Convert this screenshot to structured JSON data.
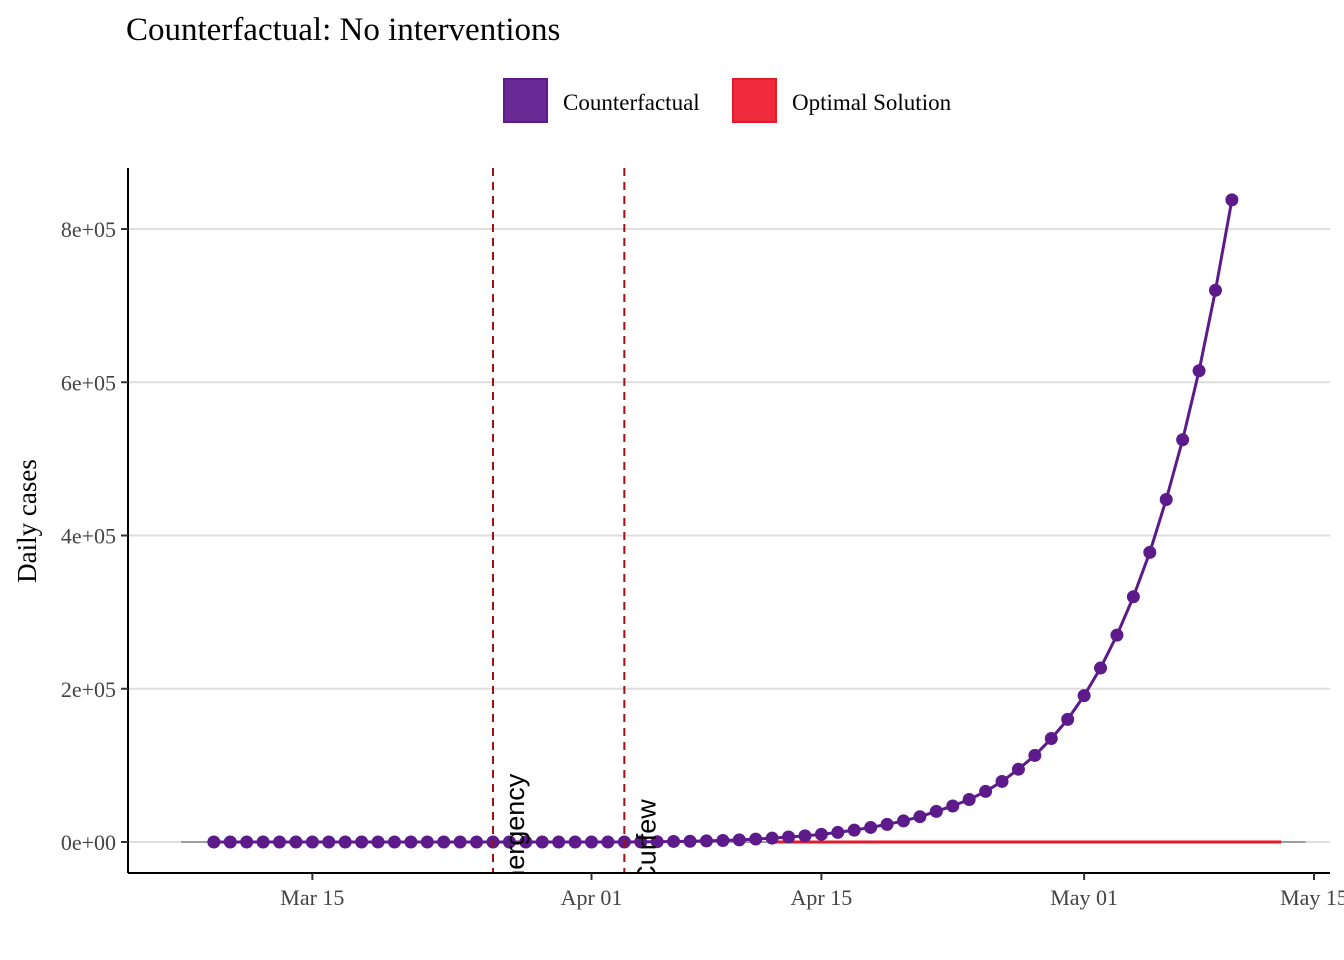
{
  "chart_data": {
    "type": "line",
    "title": "Counterfactual: No interventions",
    "xlabel": "",
    "ylabel": "Daily cases",
    "x_range": [
      "2020-03-07",
      "2020-05-15"
    ],
    "ylim": [
      -40000,
      880000
    ],
    "x_ticks": [
      {
        "date": "2020-03-15",
        "label": "Mar 15"
      },
      {
        "date": "2020-04-01",
        "label": "Apr 01"
      },
      {
        "date": "2020-04-15",
        "label": "Apr 15"
      },
      {
        "date": "2020-05-01",
        "label": "May 01"
      },
      {
        "date": "2020-05-15",
        "label": "May 15"
      }
    ],
    "y_ticks": [
      {
        "value": 0,
        "label": "0e+00"
      },
      {
        "value": 200000,
        "label": "2e+05"
      },
      {
        "value": 400000,
        "label": "4e+05"
      },
      {
        "value": 600000,
        "label": "6e+05"
      },
      {
        "value": 800000,
        "label": "8e+05"
      }
    ],
    "grid": "horizontal-major",
    "legend": {
      "position": "top",
      "entries": [
        {
          "name": "Counterfactual",
          "color": "#5c1a8a",
          "fill": "#6a2a95"
        },
        {
          "name": "Optimal Solution",
          "color": "#e31a2c",
          "fill": "#ef2b3c"
        }
      ]
    },
    "interventions": [
      {
        "date": "2020-03-26",
        "label": "Emergency",
        "color": "#a01010"
      },
      {
        "date": "2020-04-03",
        "label": "Curfew",
        "color": "#a01010"
      }
    ],
    "baseline": {
      "from": "2020-03-07",
      "to": "2020-05-14",
      "value": 0,
      "color": "#9e9e9e"
    },
    "series": [
      {
        "name": "Counterfactual",
        "color": "#5c1a8a",
        "markers": true,
        "start_date": "2020-03-09",
        "values": [
          0,
          0,
          0,
          0,
          0,
          0,
          0,
          0,
          0,
          0,
          0,
          0,
          0,
          0,
          0,
          0,
          0,
          0,
          0,
          0,
          0,
          0,
          0,
          0,
          0,
          0,
          200,
          400,
          700,
          1000,
          1400,
          2000,
          2800,
          3800,
          5000,
          6500,
          8000,
          10000,
          12500,
          15500,
          19000,
          23000,
          27500,
          33000,
          40000,
          47000,
          55500,
          66000,
          79000,
          95000,
          113000,
          135000,
          160000,
          191000,
          227000,
          270000,
          320000,
          378000,
          447000,
          525000,
          615000,
          720000,
          838000
        ]
      },
      {
        "name": "Optimal Solution",
        "color": "#e31a2c",
        "markers": false,
        "start_date": "2020-04-12",
        "end_date": "2020-05-13",
        "value": 0
      }
    ]
  }
}
